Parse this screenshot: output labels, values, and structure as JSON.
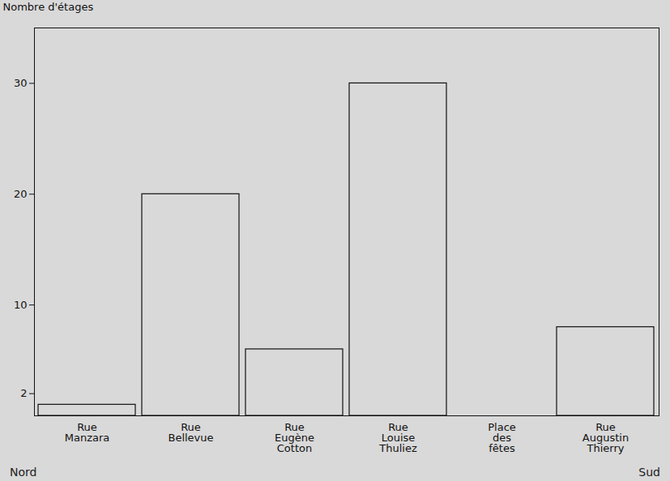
{
  "chart_data": {
    "type": "bar",
    "y_label": "Nombre d'étages",
    "categories": [
      "Rue Manzara",
      "Rue Bellevue",
      "Rue Eugène Cotton",
      "Rue Louise Thuliez",
      "Place des fêtes",
      "Rue Augustin Thierry"
    ],
    "values": [
      1,
      20,
      6,
      30,
      0,
      8
    ],
    "color": "#d9d9d9",
    "ylim": [
      0,
      35
    ],
    "yticks": [
      2,
      10,
      20,
      30
    ],
    "grid": false,
    "annotations": [
      "Nord",
      "Sud"
    ]
  }
}
